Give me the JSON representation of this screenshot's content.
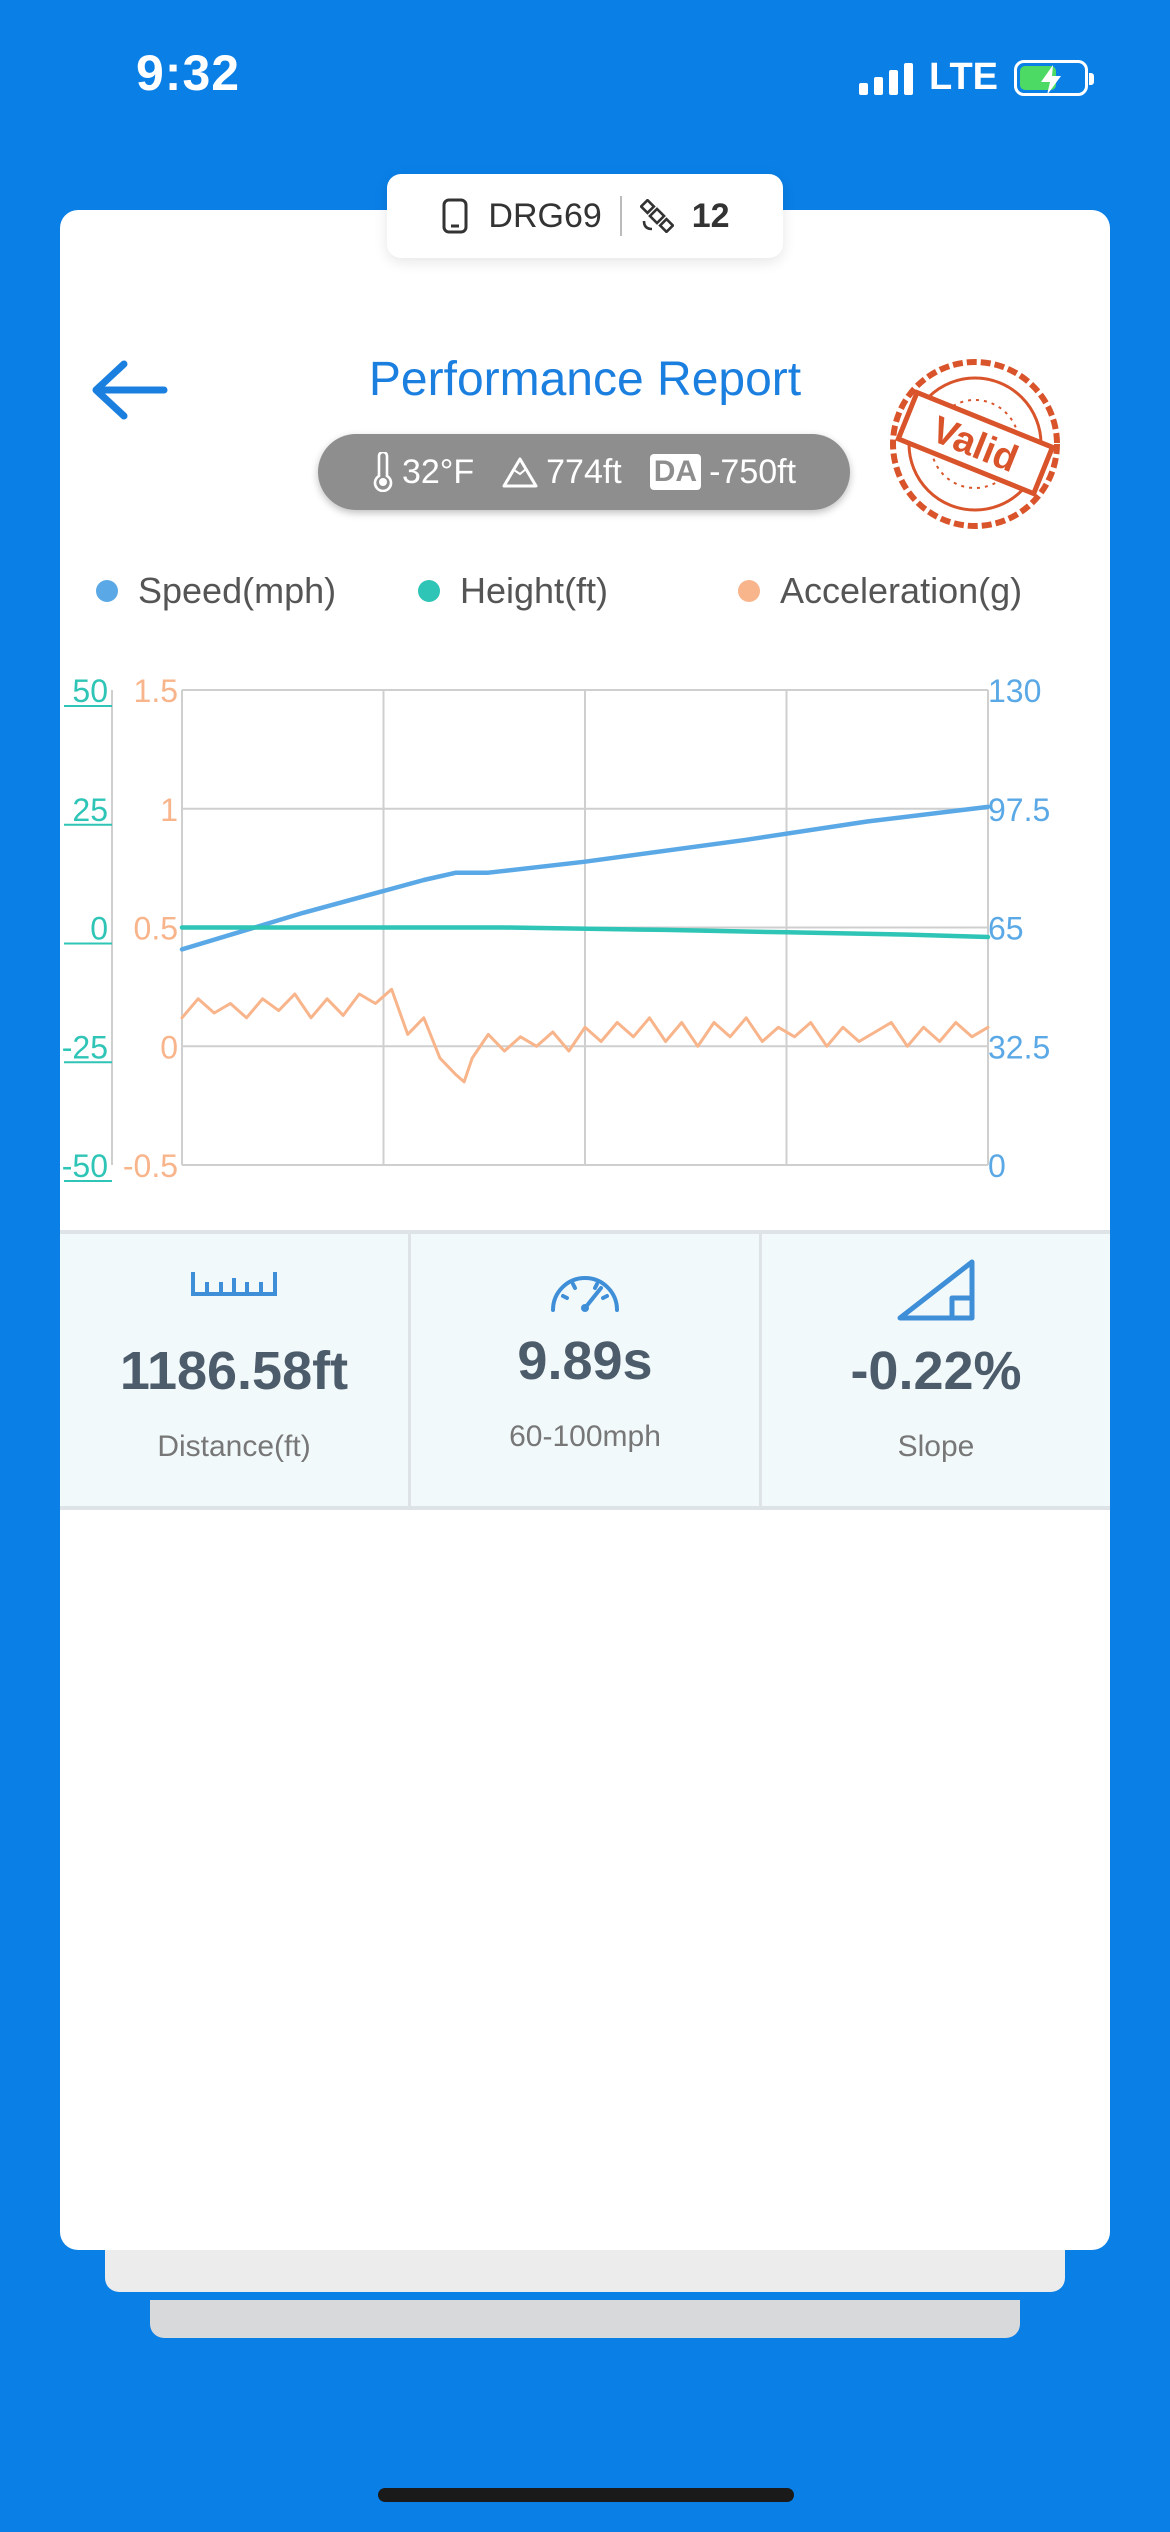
{
  "status_bar": {
    "time": "9:32",
    "network": "LTE"
  },
  "device_tab": {
    "device_name": "DRG69",
    "satellites": "12"
  },
  "header": {
    "title": "Performance Report",
    "stamp_text": "Valid"
  },
  "conditions": {
    "temperature": "32°F",
    "altitude": "774ft",
    "da_label": "DA",
    "density_altitude": "-750ft"
  },
  "colors": {
    "speed": "#5aa9e6",
    "height": "#2ec4b6",
    "acceleration": "#f8b48a",
    "brand": "#1b7fe0",
    "stamp": "#d9542b"
  },
  "legend": {
    "speed": "Speed(mph)",
    "height": "Height(ft)",
    "acceleration": "Acceleration(g)"
  },
  "chart_data": {
    "type": "line",
    "x_gridlines": 4,
    "y_axes": {
      "height": {
        "side": "left-outer",
        "ticks": [
          "50",
          "25",
          "0",
          "-25",
          "-50"
        ],
        "range": [
          -50,
          50
        ]
      },
      "acceleration": {
        "side": "left-inner",
        "ticks": [
          "1.5",
          "1",
          "0.5",
          "0",
          "-0.5"
        ],
        "range": [
          -0.5,
          1.5
        ]
      },
      "speed": {
        "side": "right",
        "ticks": [
          "130",
          "97.5",
          "65",
          "32.5",
          "0"
        ],
        "range": [
          0,
          130
        ]
      }
    },
    "series": [
      {
        "name": "Speed(mph)",
        "axis": "speed",
        "x": [
          0,
          0.15,
          0.3,
          0.34,
          0.38,
          0.5,
          0.7,
          0.85,
          1.0
        ],
        "values": [
          59,
          69,
          78,
          80,
          80,
          83,
          89,
          94,
          98
        ]
      },
      {
        "name": "Height(ft)",
        "axis": "height",
        "x": [
          0,
          0.35,
          0.4,
          0.6,
          0.75,
          0.9,
          1.0
        ],
        "values": [
          0,
          0,
          0,
          -0.5,
          -1,
          -1.5,
          -2
        ]
      },
      {
        "name": "Acceleration(g)",
        "axis": "acceleration",
        "x": [
          0,
          0.02,
          0.04,
          0.06,
          0.08,
          0.1,
          0.12,
          0.14,
          0.16,
          0.18,
          0.2,
          0.22,
          0.24,
          0.26,
          0.28,
          0.3,
          0.32,
          0.34,
          0.35,
          0.36,
          0.38,
          0.4,
          0.42,
          0.44,
          0.46,
          0.48,
          0.5,
          0.52,
          0.54,
          0.56,
          0.58,
          0.6,
          0.62,
          0.64,
          0.66,
          0.68,
          0.7,
          0.72,
          0.74,
          0.76,
          0.78,
          0.8,
          0.82,
          0.84,
          0.86,
          0.88,
          0.9,
          0.92,
          0.94,
          0.96,
          0.98,
          1.0
        ],
        "values": [
          0.12,
          0.2,
          0.14,
          0.18,
          0.12,
          0.2,
          0.15,
          0.22,
          0.12,
          0.2,
          0.13,
          0.22,
          0.18,
          0.24,
          0.05,
          0.12,
          -0.05,
          -0.12,
          -0.15,
          -0.05,
          0.05,
          -0.02,
          0.04,
          0.0,
          0.06,
          -0.02,
          0.08,
          0.02,
          0.1,
          0.04,
          0.12,
          0.02,
          0.1,
          0.0,
          0.1,
          0.04,
          0.12,
          0.02,
          0.08,
          0.04,
          0.1,
          0.0,
          0.08,
          0.02,
          0.06,
          0.1,
          0.0,
          0.08,
          0.02,
          0.1,
          0.04,
          0.08
        ]
      }
    ]
  },
  "stats": [
    {
      "icon": "ruler-icon",
      "value": "1186.58ft",
      "label": "Distance(ft)"
    },
    {
      "icon": "speedometer-icon",
      "value": "9.89s",
      "label": "60-100mph"
    },
    {
      "icon": "slope-icon",
      "value": "-0.22%",
      "label": "Slope"
    }
  ]
}
